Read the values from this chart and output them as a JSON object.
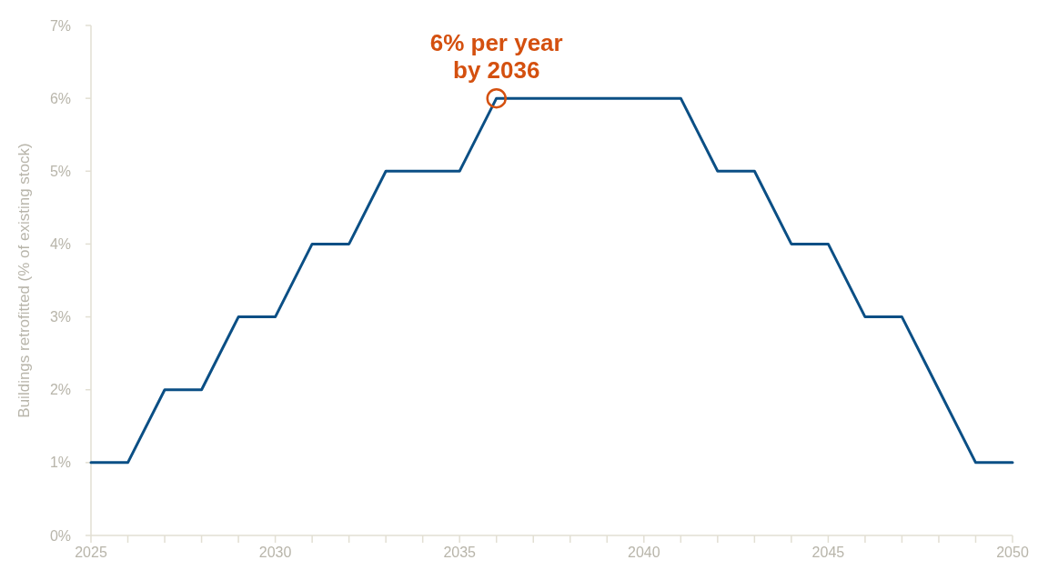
{
  "chart_data": {
    "type": "line",
    "ylabel": "Buildings retrofitted (% of existing stock)",
    "x": [
      2025,
      2026,
      2027,
      2028,
      2029,
      2030,
      2031,
      2032,
      2033,
      2034,
      2035,
      2036,
      2037,
      2038,
      2039,
      2040,
      2041,
      2042,
      2043,
      2044,
      2045,
      2046,
      2047,
      2048,
      2049,
      2050
    ],
    "series": [
      {
        "color": "#0b4f85",
        "values": [
          1,
          1,
          2,
          2,
          3,
          3,
          4,
          4,
          5,
          5,
          5,
          6,
          6,
          6,
          6,
          6,
          6,
          5,
          5,
          4,
          4,
          3,
          3,
          2,
          1,
          1
        ]
      }
    ],
    "xlim": [
      2025,
      2050
    ],
    "xticks": [
      2025,
      {
        "value": 2026,
        "label": null
      },
      {
        "value": 2027,
        "label": null
      },
      {
        "value": 2028,
        "label": null
      },
      {
        "value": 2029,
        "label": null
      },
      2030,
      {
        "value": 2031,
        "label": null
      },
      {
        "value": 2032,
        "label": null
      },
      {
        "value": 2033,
        "label": null
      },
      {
        "value": 2034,
        "label": null
      },
      2035,
      {
        "value": 2036,
        "label": null
      },
      {
        "value": 2037,
        "label": null
      },
      {
        "value": 2038,
        "label": null
      },
      {
        "value": 2039,
        "label": null
      },
      2040,
      {
        "value": 2041,
        "label": null
      },
      {
        "value": 2042,
        "label": null
      },
      {
        "value": 2043,
        "label": null
      },
      {
        "value": 2044,
        "label": null
      },
      2045,
      {
        "value": 2046,
        "label": null
      },
      {
        "value": 2047,
        "label": null
      },
      {
        "value": 2048,
        "label": null
      },
      {
        "value": 2049,
        "label": null
      },
      2050
    ],
    "ylim": [
      0,
      7
    ],
    "yticks": [
      {
        "value": 0,
        "label": "0%"
      },
      {
        "value": 1,
        "label": "1%"
      },
      {
        "value": 2,
        "label": "2%"
      },
      {
        "value": 3,
        "label": "3%"
      },
      {
        "value": 4,
        "label": "4%"
      },
      {
        "value": 5,
        "label": "5%"
      },
      {
        "value": 6,
        "label": "6%"
      },
      {
        "value": 7,
        "label": "7%"
      }
    ],
    "annotations": [
      {
        "text": "6% per year\nby 2036",
        "x": 2036,
        "y": 6
      }
    ],
    "grid": false,
    "marker": "none",
    "line_style": "solid"
  }
}
